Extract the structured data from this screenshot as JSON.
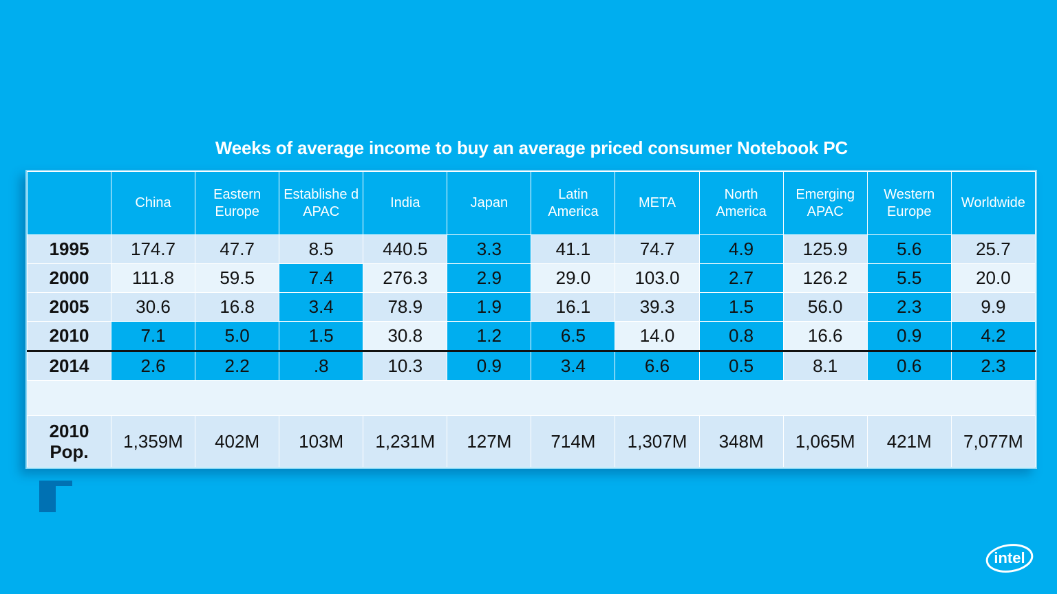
{
  "chart_data": {
    "type": "table",
    "title": "Weeks of average income to buy an average priced consumer Notebook PC",
    "columns": [
      "China",
      "Eastern Europe",
      "Establishe d APAC",
      "India",
      "Japan",
      "Latin America",
      "META",
      "North America",
      "Emerging APAC",
      "Western Europe",
      "Worldwide"
    ],
    "rows": [
      {
        "label": "1995",
        "values": [
          "174.7",
          "47.7",
          "8.5",
          "440.5",
          "3.3",
          "41.1",
          "74.7",
          "4.9",
          "125.9",
          "5.6",
          "25.7"
        ]
      },
      {
        "label": "2000",
        "values": [
          "111.8",
          "59.5",
          "7.4",
          "276.3",
          "2.9",
          "29.0",
          "103.0",
          "2.7",
          "126.2",
          "5.5",
          "20.0"
        ]
      },
      {
        "label": "2005",
        "values": [
          "30.6",
          "16.8",
          "3.4",
          "78.9",
          "1.9",
          "16.1",
          "39.3",
          "1.5",
          "56.0",
          "2.3",
          "9.9"
        ]
      },
      {
        "label": "2010",
        "values": [
          "7.1",
          "5.0",
          "1.5",
          "30.8",
          "1.2",
          "6.5",
          "14.0",
          "0.8",
          "16.6",
          "0.9",
          "4.2"
        ]
      },
      {
        "label": "2014",
        "values": [
          "2.6",
          "2.2",
          ".8",
          "10.3",
          "0.9",
          "3.4",
          "6.6",
          "0.5",
          "8.1",
          "0.6",
          "2.3"
        ]
      }
    ],
    "population_row": {
      "label_line1": "2010",
      "label_line2": "Pop.",
      "values": [
        "1,359M",
        "402M",
        "103M",
        "1,231M",
        "127M",
        "714M",
        "1,307M",
        "348M",
        "1,065M",
        "421M",
        "7,077M"
      ]
    }
  },
  "colors": {
    "background": "#00aeef",
    "highlight_cell": "#00aeef",
    "light_cell": "#d4e8f8",
    "pale_cell": "#e8f4fc",
    "header_text": "#ffffff"
  },
  "logo": {
    "text": "intel",
    "icon": "intel-logo-icon"
  },
  "decor": {
    "icon": "corner-bracket-icon"
  }
}
